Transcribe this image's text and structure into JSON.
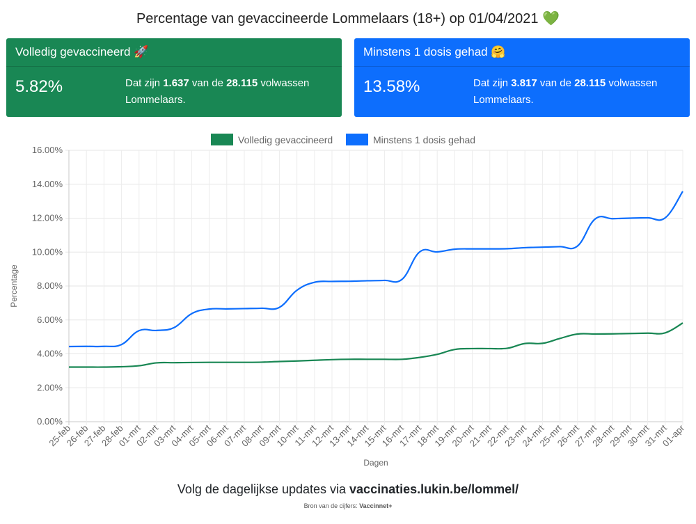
{
  "page": {
    "title": "Percentage van gevaccineerde Lommelaars (18+) op 01/04/2021",
    "title_emoji": "💚"
  },
  "cards": [
    {
      "header": "Volledig gevaccineerd 🚀",
      "percent": "5.82%",
      "text_pre": "Dat zijn ",
      "count": "1.637",
      "text_mid": " van de ",
      "total": "28.115",
      "text_post": " volwassen Lommelaars.",
      "color": "#198754"
    },
    {
      "header": "Minstens 1 dosis gehad 🤗",
      "percent": "13.58%",
      "text_pre": "Dat zijn ",
      "count": "3.817",
      "text_mid": " van de ",
      "total": "28.115",
      "text_post": " volwassen Lommelaars.",
      "color": "#0d6efd"
    }
  ],
  "footer": {
    "text": "Volg de dagelijkse updates via ",
    "link": "vaccinaties.lukin.be/lommel/",
    "source_label": "Bron van de cijfers: ",
    "source_name": "Vaccinnet+"
  },
  "chart_data": {
    "type": "line",
    "xlabel": "Dagen",
    "ylabel": "Percentage",
    "ylim": [
      0,
      16
    ],
    "yticks": [
      "0.00%",
      "2.00%",
      "4.00%",
      "6.00%",
      "8.00%",
      "10.00%",
      "12.00%",
      "14.00%",
      "16.00%"
    ],
    "grid": true,
    "legend_position": "top",
    "categories": [
      "25-feb",
      "26-feb",
      "27-feb",
      "28-feb",
      "01-mrt",
      "02-mrt",
      "03-mrt",
      "04-mrt",
      "05-mrt",
      "06-mrt",
      "07-mrt",
      "08-mrt",
      "09-mrt",
      "10-mrt",
      "11-mrt",
      "12-mrt",
      "13-mrt",
      "14-mrt",
      "15-mrt",
      "16-mrt",
      "17-mrt",
      "18-mrt",
      "19-mrt",
      "20-mrt",
      "21-mrt",
      "22-mrt",
      "23-mrt",
      "24-mrt",
      "25-mrt",
      "26-mrt",
      "27-mrt",
      "28-mrt",
      "29-mrt",
      "30-mrt",
      "31-mrt",
      "01-apr"
    ],
    "series": [
      {
        "name": "Volledig gevaccineerd",
        "color": "#198754",
        "values": [
          3.22,
          3.22,
          3.22,
          3.24,
          3.3,
          3.47,
          3.48,
          3.49,
          3.5,
          3.5,
          3.5,
          3.51,
          3.55,
          3.58,
          3.62,
          3.66,
          3.68,
          3.68,
          3.68,
          3.68,
          3.79,
          3.97,
          4.26,
          4.31,
          4.31,
          4.33,
          4.61,
          4.62,
          4.91,
          5.17,
          5.17,
          5.18,
          5.2,
          5.22,
          5.24,
          5.82
        ]
      },
      {
        "name": "Minstens 1 dosis gehad",
        "color": "#0d6efd",
        "values": [
          4.43,
          4.44,
          4.44,
          4.55,
          5.37,
          5.38,
          5.55,
          6.37,
          6.64,
          6.65,
          6.67,
          6.69,
          6.74,
          7.75,
          8.22,
          8.27,
          8.28,
          8.31,
          8.33,
          8.4,
          10.01,
          10.01,
          10.17,
          10.19,
          10.19,
          10.2,
          10.26,
          10.29,
          10.32,
          10.36,
          11.95,
          11.97,
          12.0,
          12.02,
          12.02,
          13.58
        ]
      }
    ]
  }
}
